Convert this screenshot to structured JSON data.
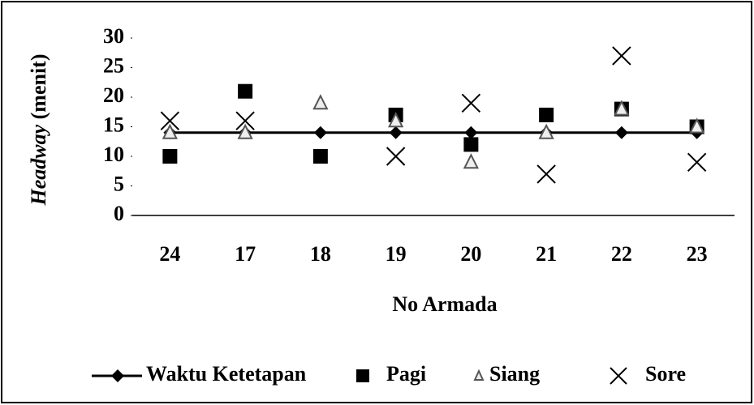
{
  "chart_data": {
    "type": "scatter",
    "ylabel": {
      "italic": "Headway",
      "rest": "(menit)"
    },
    "xlabel": "No Armada",
    "categories": [
      "24",
      "17",
      "18",
      "19",
      "20",
      "21",
      "22",
      "23"
    ],
    "ylim": [
      0,
      30
    ],
    "yticks": [
      0,
      5,
      10,
      15,
      20,
      25,
      30
    ],
    "series": [
      {
        "name": "Waktu Ketetapan",
        "marker": "line-diamond",
        "color": "#000000",
        "values": [
          14,
          14,
          14,
          14,
          14,
          14,
          14,
          14
        ]
      },
      {
        "name": "Pagi",
        "marker": "square",
        "color": "#000000",
        "values": [
          10,
          21,
          10,
          17,
          12,
          17,
          18,
          15
        ]
      },
      {
        "name": "Siang",
        "marker": "triangle",
        "color": "#555555",
        "values": [
          14,
          14,
          19,
          16,
          9,
          14,
          18,
          15
        ]
      },
      {
        "name": "Sore",
        "marker": "x",
        "color": "#000000",
        "values": [
          16,
          16,
          null,
          10,
          19,
          7,
          27,
          9
        ]
      }
    ]
  }
}
